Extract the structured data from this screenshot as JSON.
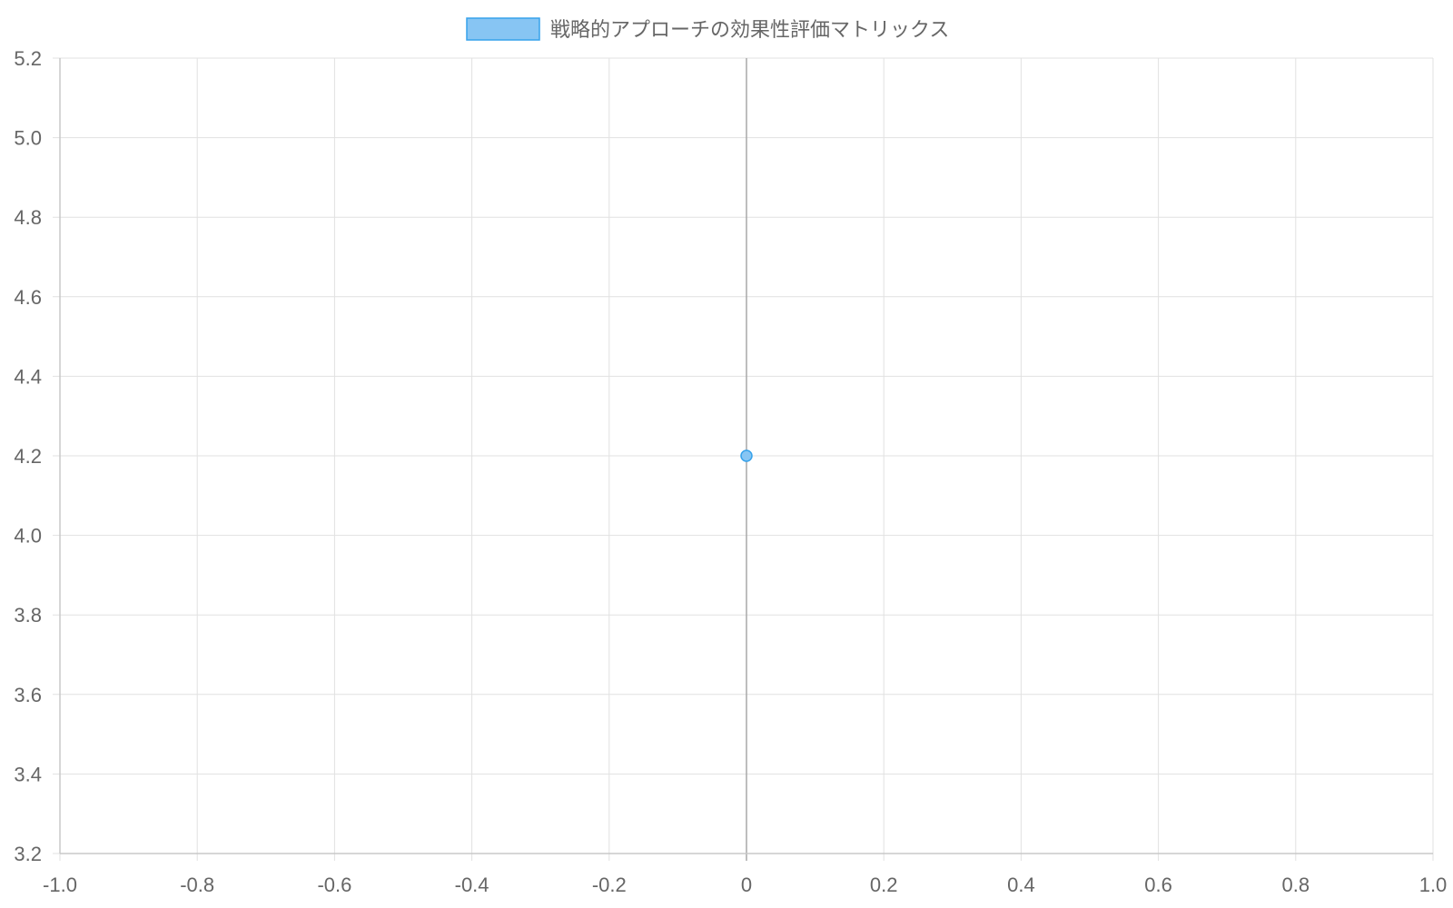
{
  "chart_data": {
    "type": "scatter",
    "title": "",
    "xlabel": "",
    "ylabel": "",
    "xlim": [
      -1.0,
      1.0
    ],
    "ylim": [
      3.2,
      5.2
    ],
    "x_ticks": [
      "-1.0",
      "-0.8",
      "-0.6",
      "-0.4",
      "-0.2",
      "0",
      "0.2",
      "0.4",
      "0.6",
      "0.8",
      "1.0"
    ],
    "y_ticks": [
      "5.2",
      "5.0",
      "4.8",
      "4.6",
      "4.4",
      "4.2",
      "4.0",
      "3.8",
      "3.6",
      "3.4",
      "3.2"
    ],
    "grid": true,
    "legend_position": "top-center",
    "series": [
      {
        "name": "戦略的アプローチの効果性評価マトリックス",
        "points": [
          {
            "x": 0,
            "y": 4.2
          }
        ],
        "fill_color": "#87C5F3",
        "border_color": "#36A2EB"
      }
    ]
  }
}
